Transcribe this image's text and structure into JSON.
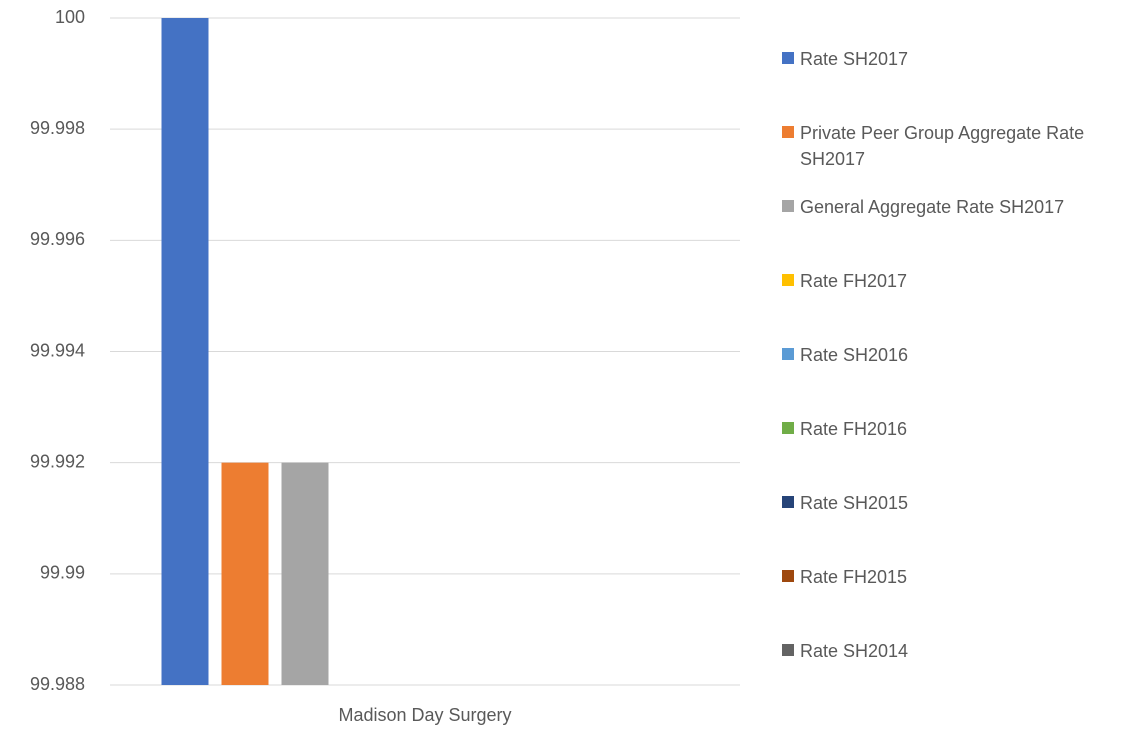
{
  "chart_data": {
    "type": "bar",
    "categories": [
      "Madison Day Surgery"
    ],
    "series": [
      {
        "name": "Rate SH2017",
        "color": "#4472c4",
        "values": [
          100
        ]
      },
      {
        "name": "Private Peer Group Aggregate Rate SH2017",
        "color": "#ed7d31",
        "values": [
          99.992
        ]
      },
      {
        "name": "General Aggregate Rate SH2017",
        "color": "#a5a5a5",
        "values": [
          99.992
        ]
      },
      {
        "name": "Rate FH2017",
        "color": "#ffc000",
        "values": [
          null
        ]
      },
      {
        "name": "Rate SH2016",
        "color": "#5b9bd5",
        "values": [
          null
        ]
      },
      {
        "name": "Rate FH2016",
        "color": "#70ad47",
        "values": [
          null
        ]
      },
      {
        "name": "Rate SH2015",
        "color": "#264478",
        "values": [
          null
        ]
      },
      {
        "name": "Rate FH2015",
        "color": "#9e480e",
        "values": [
          null
        ]
      },
      {
        "name": "Rate SH2014",
        "color": "#636363",
        "values": [
          null
        ]
      }
    ],
    "ylim": [
      99.988,
      100
    ],
    "yticks": [
      99.988,
      99.99,
      99.992,
      99.994,
      99.996,
      99.998,
      100
    ],
    "grid": true,
    "legend": "right"
  }
}
